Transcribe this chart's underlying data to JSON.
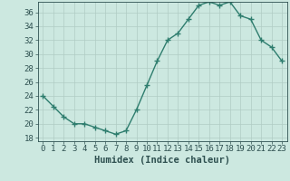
{
  "x": [
    0,
    1,
    2,
    3,
    4,
    5,
    6,
    7,
    8,
    9,
    10,
    11,
    12,
    13,
    14,
    15,
    16,
    17,
    18,
    19,
    20,
    21,
    22,
    23
  ],
  "y": [
    24,
    22.5,
    21,
    20,
    20,
    19.5,
    19,
    18.5,
    19,
    22,
    25.5,
    29,
    32,
    33,
    35,
    37,
    37.5,
    37,
    37.5,
    35.5,
    35,
    32,
    31,
    29
  ],
  "line_color": "#2e7d6e",
  "marker": "+",
  "marker_size": 4,
  "marker_lw": 1.0,
  "bg_color": "#cce8e0",
  "grid_color": "#b0ccc4",
  "xlabel": "Humidex (Indice chaleur)",
  "xlim": [
    -0.5,
    23.5
  ],
  "ylim": [
    17.5,
    37.5
  ],
  "yticks": [
    18,
    20,
    22,
    24,
    26,
    28,
    30,
    32,
    34,
    36
  ],
  "xticks": [
    0,
    1,
    2,
    3,
    4,
    5,
    6,
    7,
    8,
    9,
    10,
    11,
    12,
    13,
    14,
    15,
    16,
    17,
    18,
    19,
    20,
    21,
    22,
    23
  ],
  "xlabel_fontsize": 7.5,
  "tick_fontsize": 6.5,
  "tick_color": "#2e5050",
  "line_width": 1.0
}
